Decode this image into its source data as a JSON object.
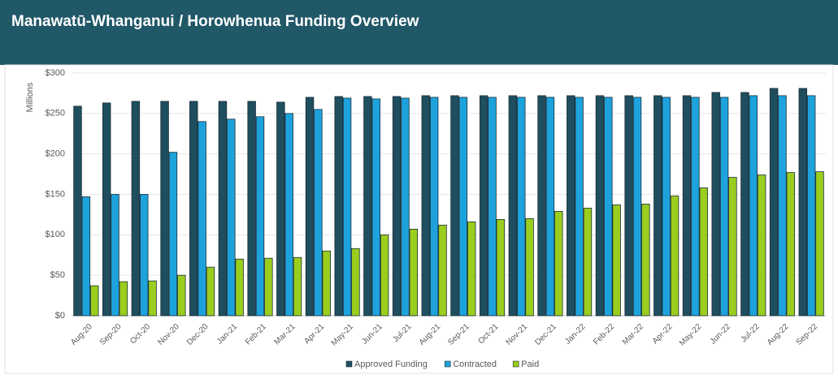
{
  "chart_data": {
    "type": "bar",
    "title": "Manawatū-Whanganui / Horowhenua  Funding Overview",
    "y_label": "Millions",
    "categories": [
      "Aug-20",
      "Sep-20",
      "Oct-20",
      "Nov-20",
      "Dec-20",
      "Jan-21",
      "Feb-21",
      "Mar-21",
      "Apr-21",
      "May-21",
      "Jun-21",
      "Jul-21",
      "Aug-21",
      "Sep-21",
      "Oct-21",
      "Nov-21",
      "Dec-21",
      "Jan-22",
      "Feb-22",
      "Mar-22",
      "Apr-22",
      "May-22",
      "Jun-22",
      "Jul-22",
      "Aug-22",
      "Sep-22"
    ],
    "series": [
      {
        "name": "Approved Funding",
        "color": "#1f4e5f",
        "values": [
          259,
          263,
          265,
          265,
          265,
          265,
          265,
          264,
          270,
          271,
          271,
          271,
          272,
          272,
          272,
          272,
          272,
          272,
          272,
          272,
          272,
          272,
          276,
          276,
          281,
          281
        ]
      },
      {
        "name": "Contracted",
        "color": "#1da2dc",
        "values": [
          147,
          150,
          150,
          202,
          240,
          243,
          246,
          250,
          255,
          269,
          268,
          269,
          270,
          270,
          270,
          270,
          270,
          270,
          270,
          270,
          270,
          270,
          270,
          272,
          272,
          272
        ]
      },
      {
        "name": "Paid",
        "color": "#9acd1e",
        "values": [
          37,
          42,
          43,
          50,
          60,
          70,
          71,
          72,
          80,
          83,
          100,
          107,
          112,
          116,
          119,
          120,
          129,
          133,
          137,
          138,
          148,
          158,
          171,
          174,
          177,
          178
        ]
      }
    ],
    "ylim": [
      0,
      300
    ],
    "yticks": [
      {
        "value": 0,
        "label": "$0"
      },
      {
        "value": 50,
        "label": "$50"
      },
      {
        "value": 100,
        "label": "$100"
      },
      {
        "value": 150,
        "label": "$150"
      },
      {
        "value": 200,
        "label": "$200"
      },
      {
        "value": 250,
        "label": "$250"
      },
      {
        "value": 300,
        "label": "$300"
      }
    ],
    "grid": true,
    "legend": "bottom"
  }
}
